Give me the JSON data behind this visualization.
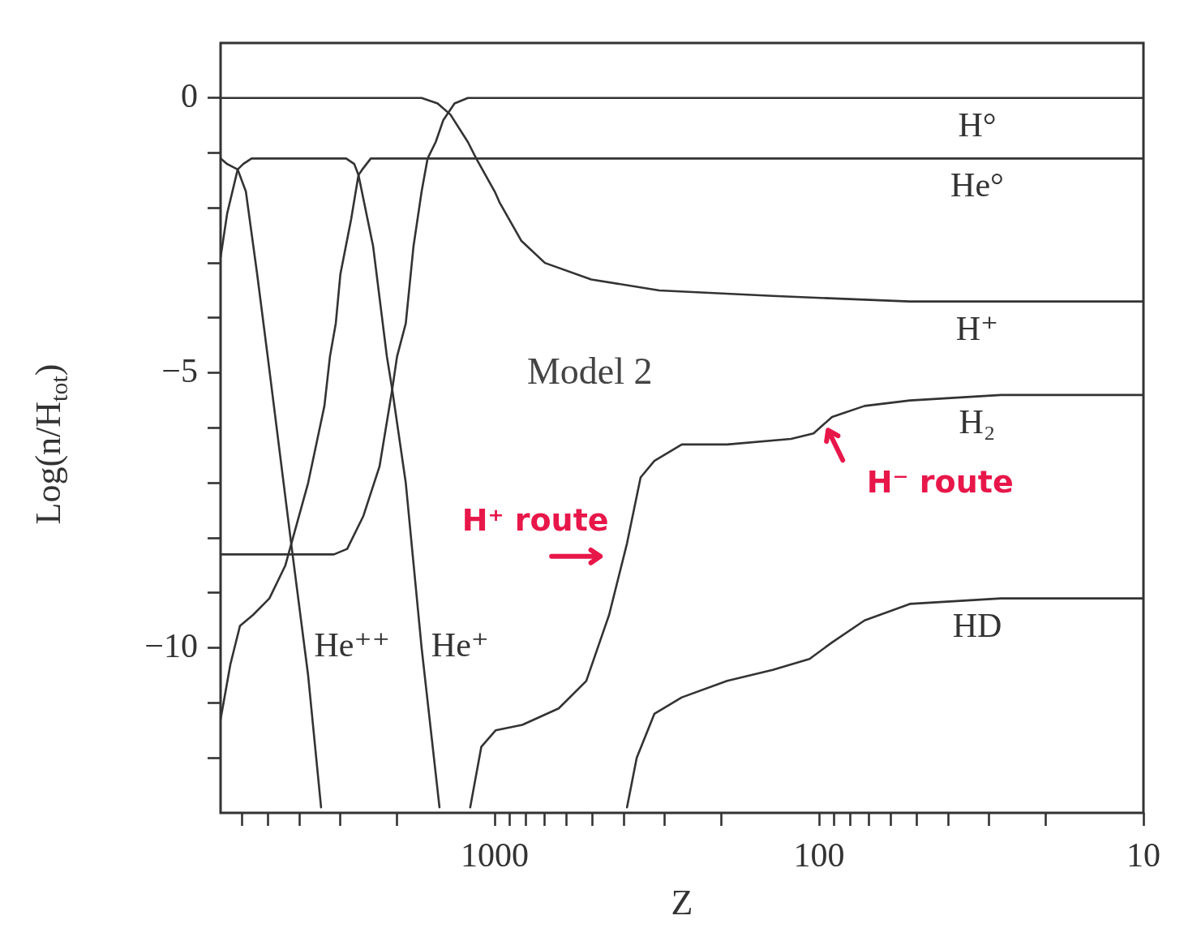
{
  "chart_data": {
    "type": "line",
    "xlabel": "Z",
    "ylabel": "Log(n/H$_{tot}$)",
    "log": "x",
    "grid": false,
    "legend": false,
    "marker": "none",
    "line_style": "solid",
    "xlim": [
      7000,
      10
    ],
    "ylim": [
      -13,
      1
    ],
    "xticks": [
      {
        "value": 6000,
        "label": null
      },
      {
        "value": 5000,
        "label": null
      },
      {
        "value": 4000,
        "label": null
      },
      {
        "value": 3000,
        "label": null
      },
      {
        "value": 2000,
        "label": null
      },
      1000,
      {
        "value": 900,
        "label": null
      },
      {
        "value": 800,
        "label": null
      },
      {
        "value": 700,
        "label": null
      },
      {
        "value": 600,
        "label": null
      },
      {
        "value": 500,
        "label": null
      },
      {
        "value": 400,
        "label": null
      },
      {
        "value": 300,
        "label": null
      },
      {
        "value": 200,
        "label": null
      },
      100,
      {
        "value": 90,
        "label": null
      },
      {
        "value": 80,
        "label": null
      },
      {
        "value": 70,
        "label": null
      },
      {
        "value": 60,
        "label": null
      },
      {
        "value": 50,
        "label": null
      },
      {
        "value": 40,
        "label": null
      },
      {
        "value": 30,
        "label": null
      },
      {
        "value": 20,
        "label": null
      },
      10
    ],
    "yticks": [
      0,
      {
        "value": -1,
        "label": null
      },
      {
        "value": -2,
        "label": null
      },
      {
        "value": -3,
        "label": null
      },
      {
        "value": -4,
        "label": null
      },
      {
        "value": -5,
        "label": "−5"
      },
      {
        "value": -6,
        "label": null
      },
      {
        "value": -7,
        "label": null
      },
      {
        "value": -8,
        "label": null
      },
      {
        "value": -9,
        "label": null
      },
      {
        "value": -10,
        "label": "−10"
      },
      {
        "value": -11,
        "label": null
      },
      {
        "value": -12,
        "label": null
      }
    ],
    "series": [
      {
        "name": "H°",
        "color": "#333333",
        "x": [
          7000,
          3130,
          2850,
          2540,
          2265,
          2070,
          2000,
          1880,
          1780,
          1680,
          1610,
          1520,
          1440,
          1330,
          1210,
          1100,
          10
        ],
        "values": [
          -8.3,
          -8.3,
          -8.2,
          -7.6,
          -6.7,
          -5.3,
          -4.7,
          -4.1,
          -2.7,
          -1.7,
          -1.1,
          -0.8,
          -0.4,
          -0.1,
          0,
          0,
          0
        ]
      },
      {
        "name": "He°",
        "color": "#333333",
        "x": [
          7000,
          6530,
          6100,
          5560,
          4950,
          4420,
          3760,
          3350,
          3220,
          3090,
          2990,
          2770,
          2630,
          2560,
          2410,
          10
        ],
        "values": [
          -11.3,
          -10.3,
          -9.6,
          -9.4,
          -9.1,
          -8.5,
          -7.0,
          -5.6,
          -4.7,
          -4.1,
          -3.2,
          -2.2,
          -1.4,
          -1.3,
          -1.1,
          -1.1
        ]
      },
      {
        "name": "H⁺",
        "color": "#333333",
        "x": [
          7000,
          3350,
          1680,
          1500,
          1370,
          1210,
          1140,
          1000,
          966,
          827,
          700,
          504,
          311,
          139,
          52.5,
          10
        ],
        "values": [
          0,
          0,
          0,
          -0.1,
          -0.3,
          -0.8,
          -1.1,
          -1.7,
          -1.9,
          -2.6,
          -3.0,
          -3.3,
          -3.5,
          -3.6,
          -3.7,
          -3.7
        ]
      },
      {
        "name": "H₂",
        "color": "#333333",
        "x": [
          1190,
          1100,
          994,
          822,
          635,
          522,
          444,
          391,
          355,
          322,
          265,
          192,
          122,
          104,
          91.2,
          72.4,
          52.5,
          27.5,
          10
        ],
        "values": [
          -12.9,
          -11.8,
          -11.5,
          -11.4,
          -11.1,
          -10.6,
          -9.4,
          -8.1,
          -6.9,
          -6.6,
          -6.3,
          -6.3,
          -6.2,
          -6.1,
          -5.8,
          -5.6,
          -5.5,
          -5.4,
          -5.4
        ]
      },
      {
        "name": "HD",
        "color": "#333333",
        "x": [
          391,
          365,
          322,
          265,
          192,
          139,
          107,
          91.2,
          72.4,
          52.5,
          27.5,
          10
        ],
        "values": [
          -12.9,
          -12.0,
          -11.2,
          -10.9,
          -10.6,
          -10.4,
          -10.2,
          -9.9,
          -9.5,
          -9.2,
          -9.1,
          -9.1
        ]
      },
      {
        "name": "He⁺⁺",
        "color": "#333333",
        "x": [
          7000,
          6680,
          6200,
          5850,
          5400,
          5010,
          4220,
          3760,
          3430
        ],
        "values": [
          -1.1,
          -1.2,
          -1.3,
          -1.7,
          -3.2,
          -4.7,
          -8.2,
          -10.5,
          -12.9
        ]
      },
      {
        "name": "He⁺",
        "color": "#333333",
        "x": [
          7000,
          6680,
          6200,
          5960,
          5620,
          2870,
          2710,
          2630,
          2370,
          2150,
          2070,
          1880,
          1680,
          1480
        ],
        "values": [
          -2.9,
          -2.1,
          -1.3,
          -1.2,
          -1.1,
          -1.1,
          -1.2,
          -1.4,
          -2.7,
          -4.7,
          -5.3,
          -7.0,
          -10.0,
          -12.9
        ]
      }
    ],
    "annotations": [
      "Model 2",
      {
        "text": "H⁺ route",
        "x": 391,
        "y": -8.1
      },
      {
        "text": "H⁻ route",
        "x": 104,
        "y": -6.1
      }
    ]
  }
}
